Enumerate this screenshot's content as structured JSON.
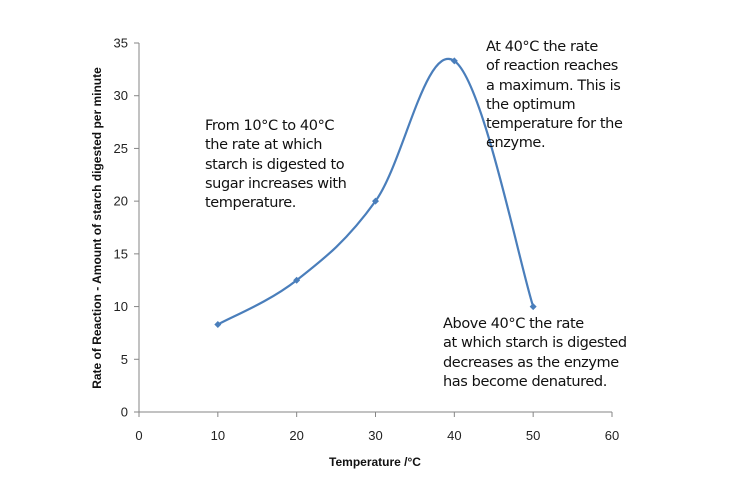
{
  "chart_data": {
    "type": "line",
    "smooth": true,
    "title": "",
    "xlabel": "Temperature /°C",
    "ylabel": "Rate of Reaction  - Amount of starch digested per minute",
    "xlim": [
      0,
      60
    ],
    "ylim": [
      0,
      35
    ],
    "xticks": [
      0,
      10,
      20,
      30,
      40,
      50,
      60
    ],
    "yticks": [
      0,
      5,
      10,
      15,
      20,
      25,
      30,
      35
    ],
    "grid": false,
    "legend": "none",
    "series": [
      {
        "color": "#4a7ebb",
        "marker": "diamond",
        "x": [
          10,
          20,
          30,
          40,
          50
        ],
        "y": [
          8.3,
          12.5,
          20,
          33.3,
          10
        ]
      }
    ],
    "annotations": [
      {
        "lines": [
          "From 10°C to 40°C",
          "the rate at which",
          "starch is digested to",
          "sugar increases with",
          "temperature."
        ]
      },
      {
        "lines": [
          "At 40°C the rate",
          "of reaction reaches",
          "a maximum.  This is",
          "the optimum",
          "temperature for the",
          "enzyme."
        ]
      },
      {
        "lines": [
          "Above 40°C the rate",
          "at which starch is digested",
          "decreases as the enzyme",
          "has become denatured."
        ]
      }
    ]
  }
}
